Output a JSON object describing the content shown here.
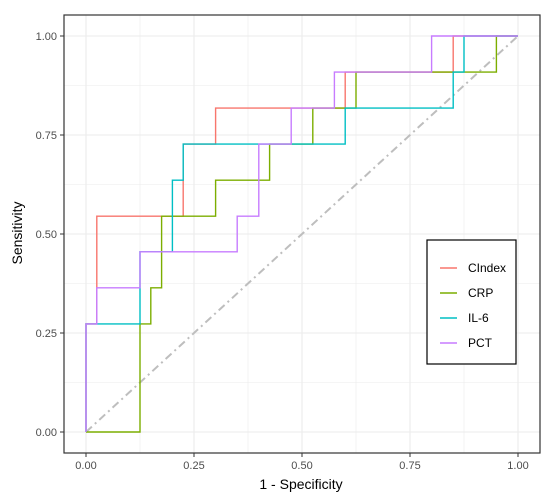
{
  "chart_data": {
    "type": "line",
    "title": "",
    "xlabel": "1 - Specificity",
    "ylabel": "Sensitivity",
    "xlim": [
      -0.05,
      1.05
    ],
    "ylim": [
      -0.05,
      1.05
    ],
    "x_ticks": [
      0,
      0.25,
      0.5,
      0.75,
      1
    ],
    "x_tick_labels": [
      "0.00",
      "0.25",
      "0.50",
      "0.75",
      "1.00"
    ],
    "y_ticks": [
      0,
      0.25,
      0.5,
      0.75,
      1
    ],
    "y_tick_labels": [
      "0.00",
      "0.25",
      "0.50",
      "0.75",
      "1.00"
    ],
    "grid": true,
    "legend_position": "right",
    "reference_line": {
      "x": [
        0,
        1
      ],
      "y": [
        0,
        1
      ],
      "color": "#bebebe",
      "style": "dashdot"
    },
    "series": [
      {
        "name": "CIndex",
        "color": "#F8766D",
        "points": [
          [
            0,
            0
          ],
          [
            0,
            0.273
          ],
          [
            0.025,
            0.273
          ],
          [
            0.025,
            0.545
          ],
          [
            0.225,
            0.545
          ],
          [
            0.225,
            0.727
          ],
          [
            0.3,
            0.727
          ],
          [
            0.3,
            0.818
          ],
          [
            0.6,
            0.818
          ],
          [
            0.6,
            0.909
          ],
          [
            0.85,
            0.909
          ],
          [
            0.85,
            1
          ],
          [
            1,
            1
          ]
        ]
      },
      {
        "name": "CRP",
        "color": "#7CAE00",
        "points": [
          [
            0,
            0
          ],
          [
            0.125,
            0
          ],
          [
            0.125,
            0.273
          ],
          [
            0.15,
            0.273
          ],
          [
            0.15,
            0.364
          ],
          [
            0.175,
            0.364
          ],
          [
            0.175,
            0.545
          ],
          [
            0.3,
            0.545
          ],
          [
            0.3,
            0.636
          ],
          [
            0.425,
            0.636
          ],
          [
            0.425,
            0.727
          ],
          [
            0.525,
            0.727
          ],
          [
            0.525,
            0.818
          ],
          [
            0.625,
            0.818
          ],
          [
            0.625,
            0.909
          ],
          [
            0.95,
            0.909
          ],
          [
            0.95,
            1
          ],
          [
            1,
            1
          ]
        ]
      },
      {
        "name": "IL-6",
        "color": "#00BFC4",
        "points": [
          [
            0,
            0
          ],
          [
            0,
            0.273
          ],
          [
            0.125,
            0.273
          ],
          [
            0.125,
            0.455
          ],
          [
            0.2,
            0.455
          ],
          [
            0.2,
            0.636
          ],
          [
            0.225,
            0.636
          ],
          [
            0.225,
            0.727
          ],
          [
            0.6,
            0.727
          ],
          [
            0.6,
            0.818
          ],
          [
            0.85,
            0.818
          ],
          [
            0.85,
            0.909
          ],
          [
            0.875,
            0.909
          ],
          [
            0.875,
            1
          ],
          [
            1,
            1
          ]
        ]
      },
      {
        "name": "PCT",
        "color": "#C77CFF",
        "points": [
          [
            0,
            0
          ],
          [
            0,
            0.273
          ],
          [
            0.025,
            0.273
          ],
          [
            0.025,
            0.364
          ],
          [
            0.125,
            0.364
          ],
          [
            0.125,
            0.455
          ],
          [
            0.35,
            0.455
          ],
          [
            0.35,
            0.545
          ],
          [
            0.4,
            0.545
          ],
          [
            0.4,
            0.727
          ],
          [
            0.475,
            0.727
          ],
          [
            0.475,
            0.818
          ],
          [
            0.575,
            0.818
          ],
          [
            0.575,
            0.909
          ],
          [
            0.8,
            0.909
          ],
          [
            0.8,
            1
          ],
          [
            1,
            1
          ]
        ]
      }
    ]
  }
}
